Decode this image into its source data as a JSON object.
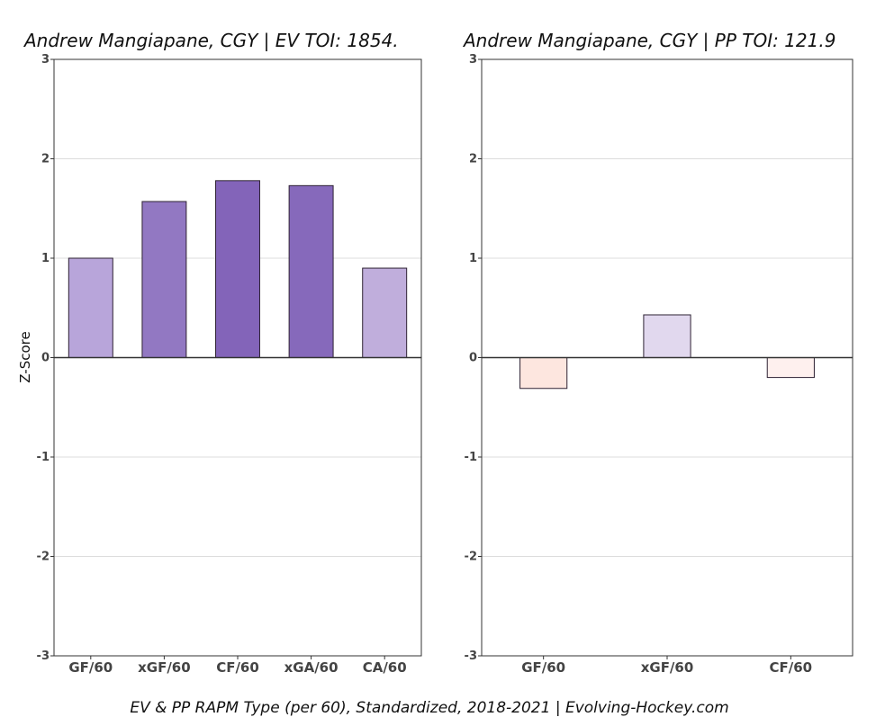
{
  "chart_data": [
    {
      "type": "bar",
      "title": "Andrew Mangiapane, CGY  |  EV TOI: 1854.",
      "ylabel": "Z-Score",
      "ylim": [
        -3,
        3
      ],
      "yticks": [
        "3",
        "2",
        "1",
        "0",
        "-1",
        "-2",
        "-3"
      ],
      "categories": [
        "GF/60",
        "xGF/60",
        "CF/60",
        "xGA/60",
        "CA/60"
      ],
      "values": [
        1.0,
        1.57,
        1.78,
        1.73,
        0.9
      ],
      "colors": [
        "#b8a5da",
        "#9278c2",
        "#8364b9",
        "#8669bb",
        "#c0aedc"
      ],
      "grid": true
    },
    {
      "type": "bar",
      "title": "Andrew Mangiapane, CGY  |  PP TOI: 121.9",
      "ylim": [
        -3,
        3
      ],
      "yticks": [
        "3",
        "2",
        "1",
        "0",
        "-1",
        "-2",
        "-3"
      ],
      "categories": [
        "GF/60",
        "xGF/60",
        "CF/60"
      ],
      "values": [
        -0.31,
        0.43,
        -0.2
      ],
      "colors": [
        "#fde6df",
        "#e1d8ee",
        "#fef0ee"
      ],
      "grid": true
    }
  ],
  "footer": "EV & PP RAPM Type (per 60), Standardized, 2018-2021    |    Evolving-Hockey.com"
}
